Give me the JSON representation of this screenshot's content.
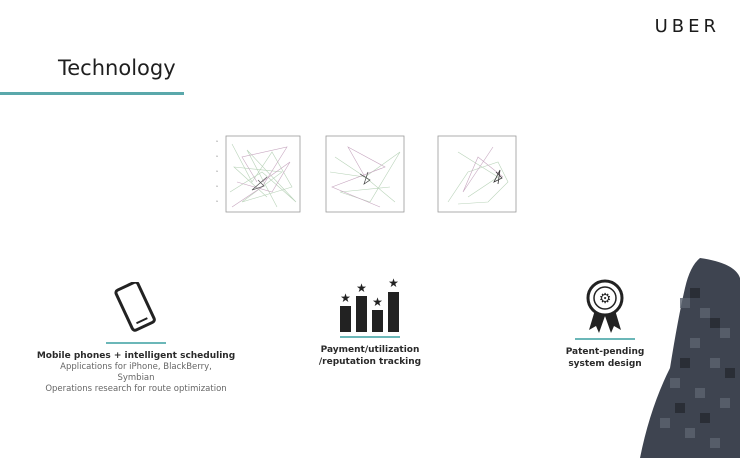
{
  "header": {
    "logo": "UBER",
    "title": "Technology"
  },
  "features": [
    {
      "icon": "smartphone-icon",
      "heading": "Mobile phones + intelligent scheduling",
      "lines": [
        "Applications for iPhone, BlackBerry,",
        "Symbian",
        "Operations research for route optimization"
      ]
    },
    {
      "icon": "rating-bars-icon",
      "heading_lines": [
        "Payment/utilization",
        "/reputation tracking"
      ]
    },
    {
      "icon": "award-badge-icon",
      "heading_lines": [
        "Patent-pending",
        "system design"
      ]
    }
  ],
  "colors": {
    "accent": "#5aa8ab",
    "text_dark": "#1f1f1f",
    "text_muted": "#666666"
  }
}
